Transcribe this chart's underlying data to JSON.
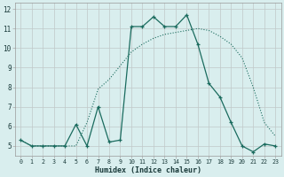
{
  "xlabel": "Humidex (Indice chaleur)",
  "x": [
    0,
    1,
    2,
    3,
    4,
    5,
    6,
    7,
    8,
    9,
    10,
    11,
    12,
    13,
    14,
    15,
    16,
    17,
    18,
    19,
    20,
    21,
    22,
    23
  ],
  "line_dotted_y": [
    5.3,
    5.0,
    5.0,
    5.0,
    5.0,
    5.0,
    6.2,
    7.9,
    8.4,
    9.1,
    9.8,
    10.2,
    10.5,
    10.7,
    10.8,
    10.9,
    11.0,
    10.9,
    10.6,
    10.2,
    9.5,
    8.0,
    6.2,
    5.5
  ],
  "line_solid_y": [
    5.3,
    5.0,
    5.0,
    5.0,
    5.0,
    6.1,
    5.0,
    7.0,
    5.2,
    5.3,
    11.1,
    11.1,
    11.6,
    11.1,
    11.1,
    11.7,
    10.2,
    8.2,
    7.5,
    6.2,
    5.0,
    4.7,
    5.1,
    5.0
  ],
  "line_color": "#1a6b5e",
  "bg_color": "#d9eeee",
  "grid_color": "#c0c8c8",
  "ylim_min": 4.5,
  "ylim_max": 12.3,
  "xlim_min": -0.5,
  "xlim_max": 23.5
}
